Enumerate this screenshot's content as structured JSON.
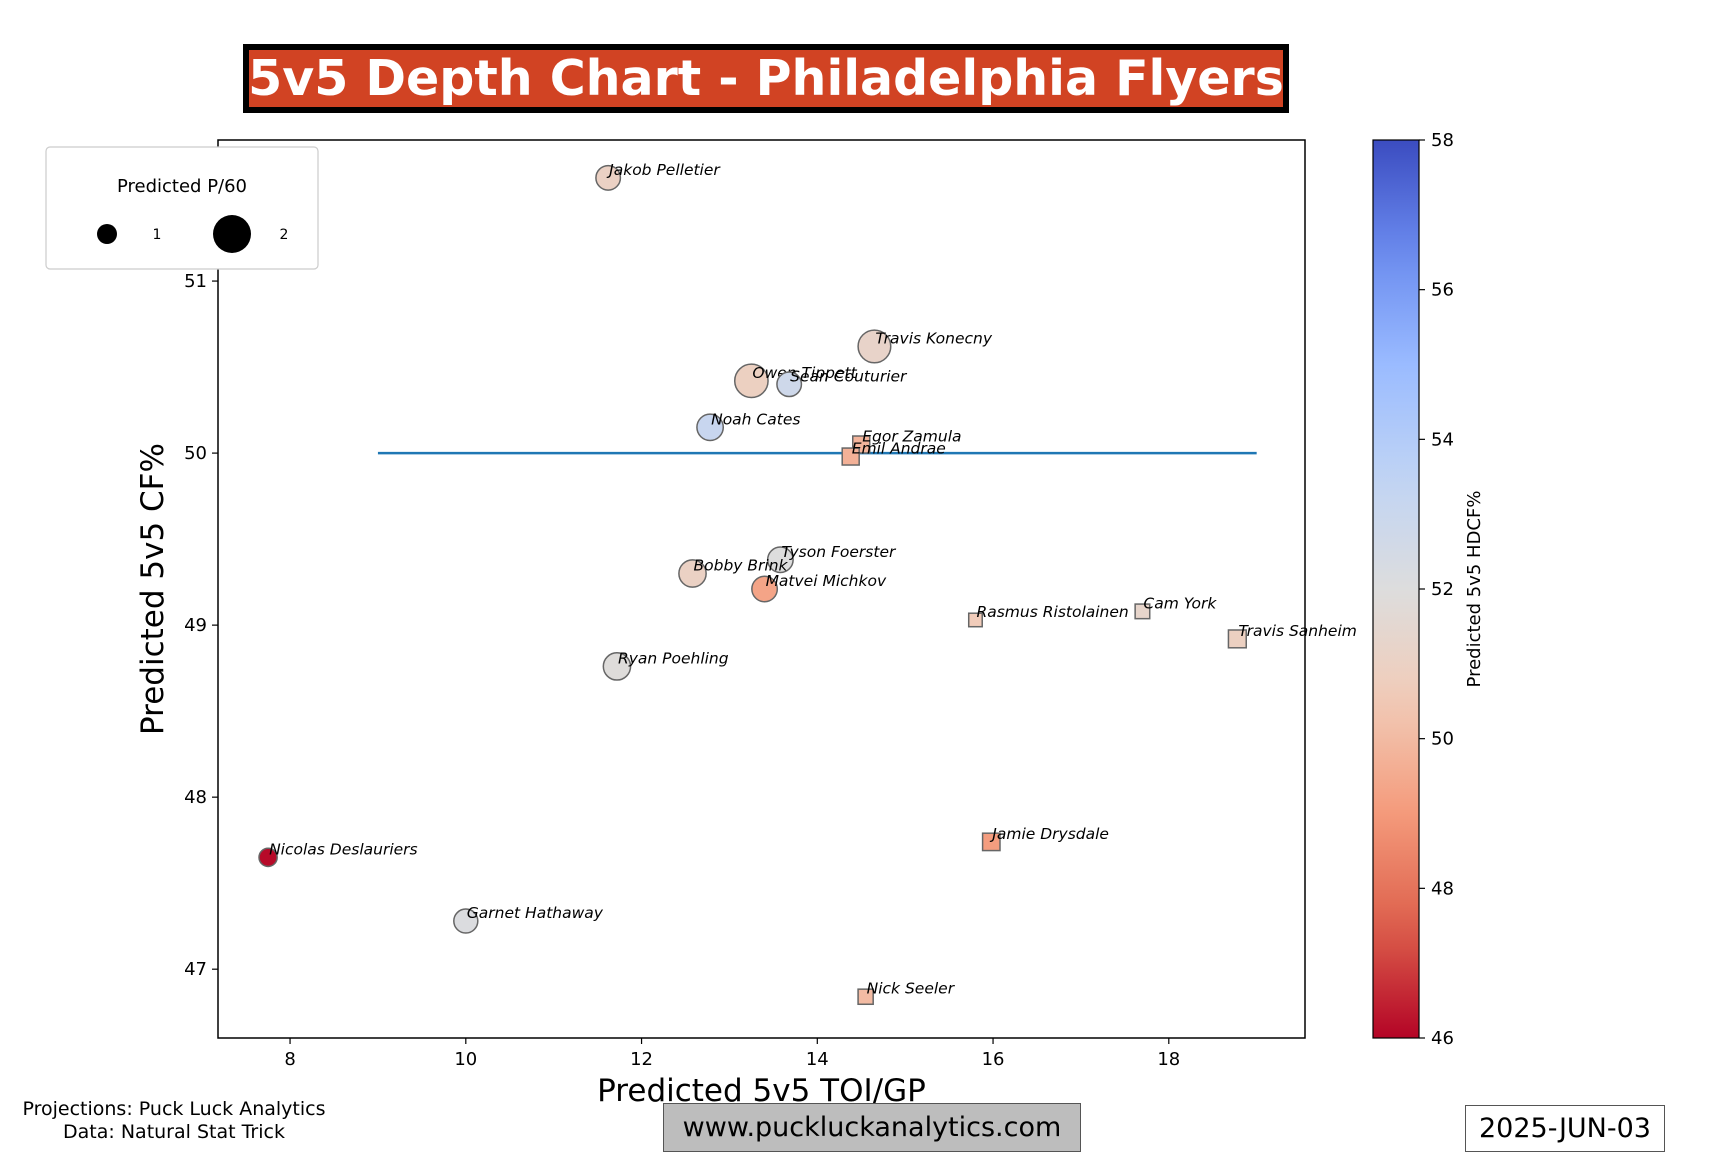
{
  "title": "5v5 Depth Chart - Philadelphia Flyers",
  "footer": {
    "projections": "Projections: Puck Luck Analytics",
    "data_source": "Data: Natural Stat Trick",
    "url": "www.puckluckanalytics.com",
    "date": "2025-JUN-03"
  },
  "chart_data": {
    "type": "scatter",
    "xlabel": "Predicted 5v5 TOI/GP",
    "ylabel": "Predicted 5v5 CF%",
    "xlim": [
      7.18,
      19.55
    ],
    "ylim": [
      46.6,
      51.82
    ],
    "xticks": [
      8,
      10,
      12,
      14,
      16,
      18
    ],
    "yticks": [
      47,
      48,
      49,
      50,
      51
    ],
    "grid": false,
    "reference_line": {
      "y": 50,
      "x_from": 9,
      "x_to": 19,
      "color": "#1f77b4"
    },
    "size_legend": {
      "title": "Predicted P/60",
      "placement": "upper-left",
      "entries": [
        {
          "label": "1",
          "value": 1
        },
        {
          "label": "2",
          "value": 2
        }
      ]
    },
    "colorbar": {
      "label": "Predicted 5v5 HDCF%",
      "colormap": "coolwarm_r",
      "range": [
        46,
        58
      ],
      "ticks": [
        46,
        48,
        50,
        52,
        54,
        56,
        58
      ]
    },
    "players": [
      {
        "name": "Jakob Pelletier",
        "shape": "circle",
        "toi": 11.62,
        "cf": 51.6,
        "p60": 1.05,
        "hdcf": 51.0
      },
      {
        "name": "Travis Konecny",
        "shape": "circle",
        "toi": 14.65,
        "cf": 50.62,
        "p60": 2.05,
        "hdcf": 51.2
      },
      {
        "name": "Owen Tippett",
        "shape": "circle",
        "toi": 13.25,
        "cf": 50.42,
        "p60": 2.15,
        "hdcf": 50.9
      },
      {
        "name": "Sean Couturier",
        "shape": "circle",
        "toi": 13.68,
        "cf": 50.4,
        "p60": 1.05,
        "hdcf": 52.8
      },
      {
        "name": "Noah Cates",
        "shape": "circle",
        "toi": 12.78,
        "cf": 50.15,
        "p60": 1.25,
        "hdcf": 53.1
      },
      {
        "name": "Tyson Foerster",
        "shape": "circle",
        "toi": 13.58,
        "cf": 49.38,
        "p60": 1.15,
        "hdcf": 52.0
      },
      {
        "name": "Bobby Brink",
        "shape": "circle",
        "toi": 12.58,
        "cf": 49.3,
        "p60": 1.35,
        "hdcf": 51.0
      },
      {
        "name": "Matvei Michkov",
        "shape": "circle",
        "toi": 13.4,
        "cf": 49.21,
        "p60": 1.15,
        "hdcf": 49.3
      },
      {
        "name": "Ryan Poehling",
        "shape": "circle",
        "toi": 11.72,
        "cf": 48.76,
        "p60": 1.35,
        "hdcf": 51.9
      },
      {
        "name": "Nicolas Deslauriers",
        "shape": "circle",
        "toi": 7.75,
        "cf": 47.65,
        "p60": 0.5,
        "hdcf": 46.1
      },
      {
        "name": "Garnet Hathaway",
        "shape": "circle",
        "toi": 10.0,
        "cf": 47.28,
        "p60": 1.0,
        "hdcf": 52.1
      },
      {
        "name": "Egor Zamula",
        "shape": "square",
        "toi": 14.5,
        "cf": 50.05,
        "p60": 0.8,
        "hdcf": 49.8
      },
      {
        "name": "Emil Andrae",
        "shape": "square",
        "toi": 14.38,
        "cf": 49.98,
        "p60": 0.8,
        "hdcf": 49.7
      },
      {
        "name": "Rasmus Ristolainen",
        "shape": "square",
        "toi": 15.8,
        "cf": 49.03,
        "p60": 0.45,
        "hdcf": 50.6
      },
      {
        "name": "Cam York",
        "shape": "square",
        "toi": 17.7,
        "cf": 49.08,
        "p60": 0.55,
        "hdcf": 51.3
      },
      {
        "name": "Travis Sanheim",
        "shape": "square",
        "toi": 18.78,
        "cf": 48.92,
        "p60": 0.9,
        "hdcf": 50.9
      },
      {
        "name": "Jamie Drysdale",
        "shape": "square",
        "toi": 15.98,
        "cf": 47.74,
        "p60": 0.85,
        "hdcf": 49.1
      },
      {
        "name": "Nick Seeler",
        "shape": "square",
        "toi": 14.55,
        "cf": 46.84,
        "p60": 0.6,
        "hdcf": 50.0
      }
    ]
  }
}
